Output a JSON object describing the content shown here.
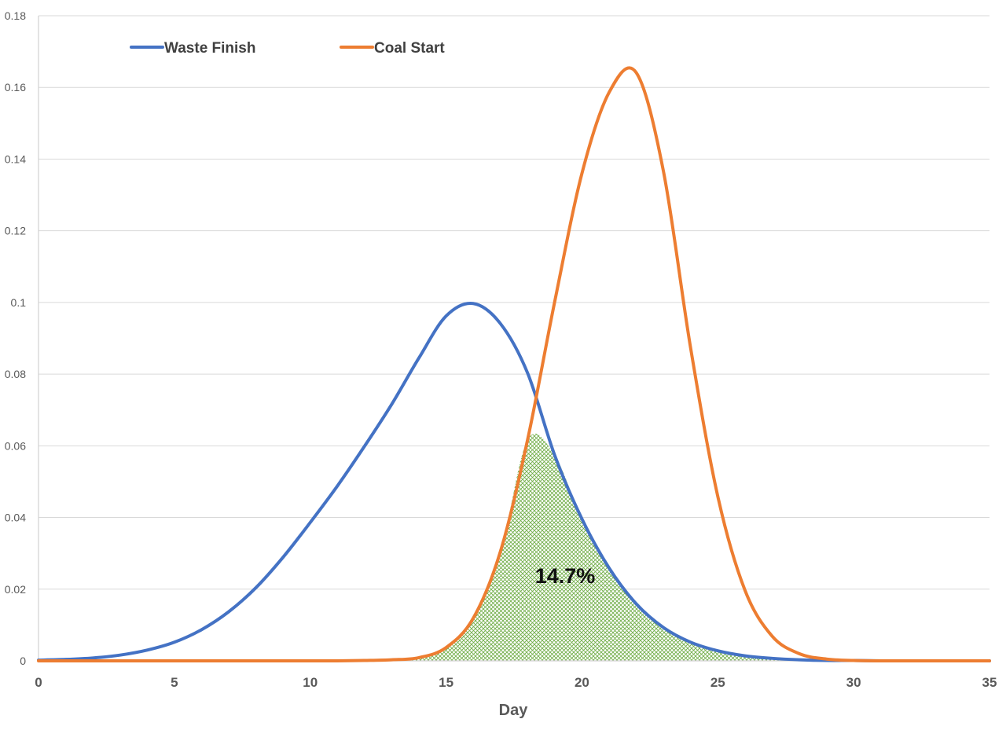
{
  "chart_data": {
    "type": "line",
    "title": "",
    "xlabel": "Day",
    "ylabel": "",
    "xlim": [
      0,
      35
    ],
    "ylim": [
      0,
      0.18
    ],
    "x_ticks": [
      0,
      5,
      10,
      15,
      20,
      25,
      30,
      35
    ],
    "y_ticks": [
      0,
      0.02,
      0.04,
      0.06,
      0.08,
      0.1,
      0.12,
      0.14,
      0.16,
      0.18
    ],
    "y_tick_labels": [
      "0",
      "0.02",
      "0.04",
      "0.06",
      "0.08",
      "0.1",
      "0.12",
      "0.14",
      "0.16",
      "0.18"
    ],
    "grid": true,
    "legend_position": "top-left",
    "x": [
      0,
      1,
      2,
      3,
      4,
      5,
      6,
      7,
      8,
      9,
      10,
      11,
      12,
      13,
      14,
      15,
      16,
      17,
      18,
      19,
      20,
      21,
      22,
      23,
      24,
      25,
      26,
      27,
      28,
      29,
      30,
      31,
      32,
      33,
      34,
      35
    ],
    "series": [
      {
        "name": "Waste Finish",
        "color": "#4472C4",
        "values": [
          0.0002,
          0.0004,
          0.0008,
          0.0016,
          0.003,
          0.0052,
          0.0087,
          0.0137,
          0.0204,
          0.0289,
          0.0386,
          0.0488,
          0.0599,
          0.0716,
          0.0845,
          0.0962,
          0.0997,
          0.0941,
          0.0803,
          0.0573,
          0.0396,
          0.0259,
          0.0159,
          0.0093,
          0.0052,
          0.0028,
          0.0014,
          0.0007,
          0.0003,
          0.0001,
          0.0001,
          0.0,
          0.0,
          0.0,
          0.0,
          0.0
        ]
      },
      {
        "name": "Coal Start",
        "color": "#ED7D31",
        "values": [
          0.0,
          0.0,
          0.0,
          0.0,
          0.0,
          0.0,
          0.0,
          0.0,
          0.0,
          0.0,
          0.0,
          0.0,
          0.0001,
          0.0003,
          0.0009,
          0.0037,
          0.0119,
          0.0305,
          0.0617,
          0.1003,
          0.136,
          0.1586,
          0.1641,
          0.1366,
          0.0873,
          0.0459,
          0.0197,
          0.0069,
          0.002,
          0.0005,
          0.0001,
          0.0,
          0.0,
          0.0,
          0.0,
          0.0
        ]
      }
    ],
    "overlap_region": {
      "fill_color": "#70AD47",
      "label": "14.7%"
    }
  }
}
